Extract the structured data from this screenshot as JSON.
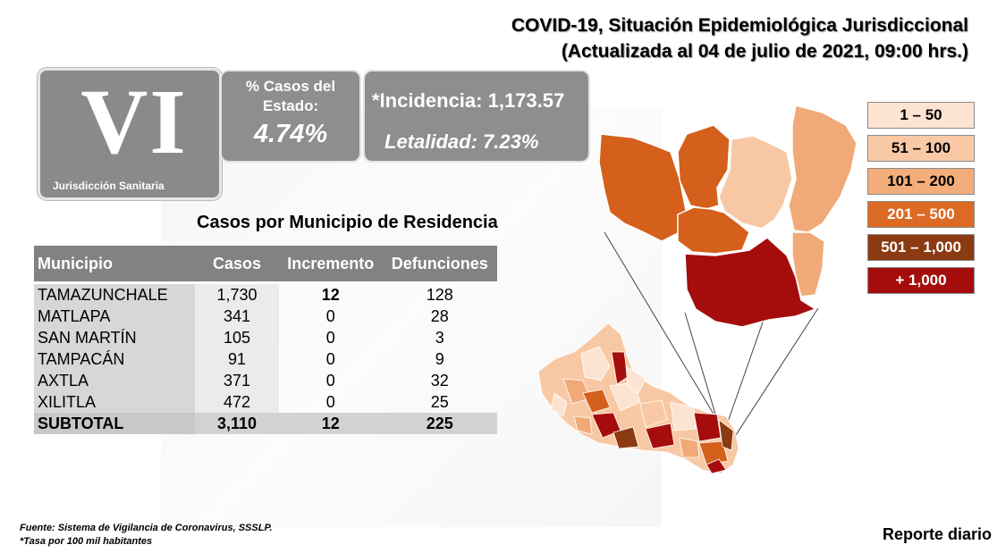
{
  "header": {
    "title_line1": "COVID-19, Situación Epidemiológica Jurisdiccional",
    "title_line2": "(Actualizada al 04 de julio de 2021, 09:00 hrs.)"
  },
  "jurisdiction": {
    "numeral": "VI",
    "label": "Jurisdicción Sanitaria"
  },
  "state_share": {
    "label": "% Casos del Estado:",
    "value": "4.74%"
  },
  "rates": {
    "incidence": "*Incidencia: 1,173.57",
    "lethality": "Letalidad: 7.23%"
  },
  "table": {
    "title": "Casos por Municipio  de Residencia",
    "headers": [
      "Municipio",
      "Casos",
      "Incremento",
      "Defunciones"
    ],
    "rows": [
      {
        "municipio": "TAMAZUNCHALE",
        "casos": "1,730",
        "incremento": "12",
        "defunciones": "128"
      },
      {
        "municipio": "MATLAPA",
        "casos": "341",
        "incremento": "0",
        "defunciones": "28"
      },
      {
        "municipio": "SAN MARTÍN",
        "casos": "105",
        "incremento": "0",
        "defunciones": "3"
      },
      {
        "municipio": "TAMPACÁN",
        "casos": "91",
        "incremento": "0",
        "defunciones": "9"
      },
      {
        "municipio": "AXTLA",
        "casos": "371",
        "incremento": "0",
        "defunciones": "32"
      },
      {
        "municipio": "XILITLA",
        "casos": "472",
        "incremento": "0",
        "defunciones": "25"
      }
    ],
    "subtotal": {
      "municipio": "SUBTOTAL",
      "casos": "3,110",
      "incremento": "12",
      "defunciones": "225"
    }
  },
  "legend": [
    {
      "label": "1 – 50",
      "color": "#fde3d2",
      "text_color": "#000000"
    },
    {
      "label": "51 – 100",
      "color": "#f9c9a6",
      "text_color": "#000000"
    },
    {
      "label": "101 – 200",
      "color": "#f2ad7a",
      "text_color": "#000000"
    },
    {
      "label": "201 – 500",
      "color": "#dd6a24",
      "text_color": "#ffffff"
    },
    {
      "label": "501 – 1,000",
      "color": "#8b3a12",
      "text_color": "#ffffff"
    },
    {
      "label": "+ 1,000",
      "color": "#a50d0d",
      "text_color": "#ffffff"
    }
  ],
  "footer": {
    "source": "Fuente: Sistema de Vigilancia de Coronavirus, SSSLP.",
    "note": "*Tasa por 100 mil habitantes",
    "report": "Reporte diario"
  }
}
